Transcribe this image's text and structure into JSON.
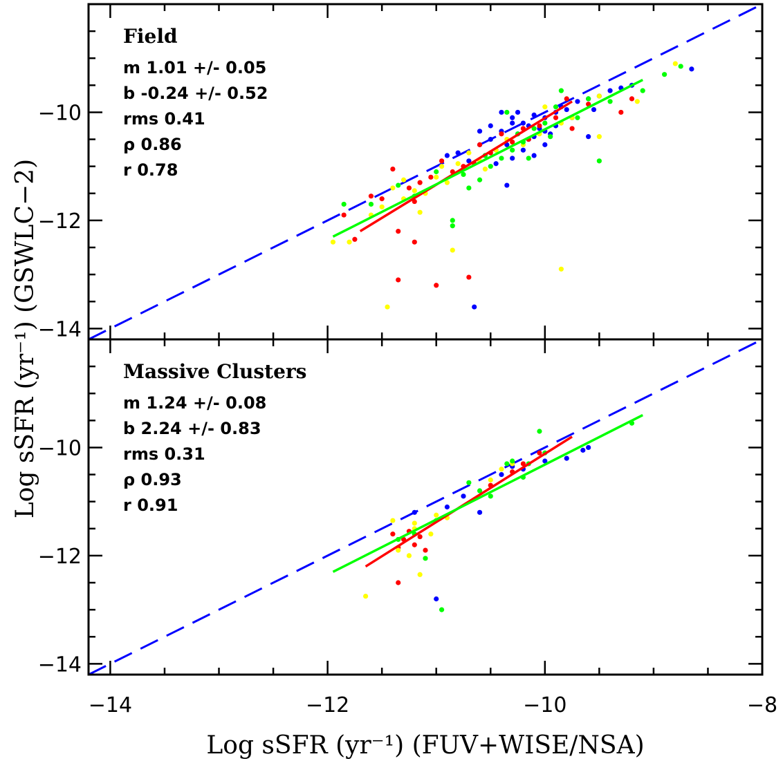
{
  "chart_data": {
    "type": "scatter",
    "xlabel": "Log sSFR (yr⁻¹) (FUV+WISE/NSA)",
    "ylabel": "Log sSFR (yr⁻¹) (GSWLC−2)",
    "xlim": [
      -14.2,
      -8
    ],
    "x_ticks": [
      -14,
      -12,
      -10,
      -8
    ],
    "y_ticks": [
      -14,
      -12,
      -10
    ],
    "colors": {
      "blue": "#0000ff",
      "red": "#ff0000",
      "yellow": "#ffff00",
      "green": "#00ff00",
      "one_to_one": "#0000ff"
    },
    "panels": [
      {
        "name": "Field",
        "ylim": [
          -14.2,
          -8
        ],
        "stats": [
          "m 1.01 +/- 0.05",
          "b -0.24 +/- 0.52",
          "rms 0.41",
          "ρ 0.86",
          "r 0.78"
        ],
        "fit_lines": [
          {
            "color": "red",
            "x": [
              -11.7,
              -9.75
            ],
            "y": [
              -12.2,
              -9.8
            ]
          },
          {
            "color": "green",
            "x": [
              -11.95,
              -9.1
            ],
            "y": [
              -12.3,
              -9.4
            ]
          }
        ],
        "series": [
          {
            "color": "blue",
            "points": [
              [
                -10.4,
                -10.35
              ],
              [
                -10.3,
                -10.1
              ],
              [
                -10.2,
                -10.2
              ],
              [
                -10.1,
                -10.05
              ],
              [
                -10.0,
                -10.1
              ],
              [
                -9.9,
                -10.0
              ],
              [
                -9.85,
                -9.9
              ],
              [
                -9.8,
                -9.95
              ],
              [
                -10.25,
                -10.4
              ],
              [
                -10.15,
                -10.5
              ],
              [
                -10.05,
                -10.3
              ],
              [
                -10.35,
                -10.6
              ],
              [
                -10.45,
                -10.7
              ],
              [
                -10.55,
                -10.8
              ],
              [
                -10.5,
                -10.5
              ],
              [
                -10.6,
                -10.6
              ],
              [
                -10.7,
                -10.9
              ],
              [
                -10.3,
                -10.85
              ],
              [
                -10.2,
                -10.7
              ],
              [
                -10.1,
                -10.8
              ],
              [
                -10.0,
                -10.6
              ],
              [
                -9.95,
                -10.4
              ],
              [
                -9.7,
                -9.8
              ],
              [
                -9.6,
                -9.75
              ],
              [
                -9.5,
                -9.7
              ],
              [
                -9.4,
                -9.6
              ],
              [
                -9.3,
                -9.55
              ],
              [
                -9.2,
                -9.5
              ],
              [
                -8.65,
                -9.2
              ],
              [
                -10.65,
                -13.6
              ],
              [
                -10.35,
                -11.35
              ],
              [
                -9.6,
                -10.45
              ],
              [
                -10.4,
                -10.0
              ],
              [
                -10.6,
                -10.35
              ],
              [
                -10.8,
                -10.75
              ],
              [
                -10.9,
                -10.8
              ],
              [
                -10.25,
                -10.0
              ],
              [
                -10.0,
                -10.35
              ],
              [
                -9.9,
                -10.25
              ],
              [
                -10.15,
                -10.25
              ],
              [
                -9.75,
                -10.1
              ],
              [
                -9.55,
                -9.95
              ],
              [
                -10.5,
                -10.25
              ],
              [
                -10.45,
                -10.95
              ],
              [
                -10.3,
                -10.2
              ],
              [
                -10.1,
                -10.45
              ]
            ]
          },
          {
            "color": "red",
            "points": [
              [
                -11.85,
                -11.9
              ],
              [
                -11.75,
                -12.35
              ],
              [
                -11.6,
                -11.55
              ],
              [
                -11.4,
                -11.05
              ],
              [
                -11.35,
                -12.2
              ],
              [
                -11.25,
                -11.4
              ],
              [
                -11.2,
                -11.65
              ],
              [
                -11.15,
                -11.3
              ],
              [
                -11.05,
                -11.2
              ],
              [
                -10.95,
                -10.9
              ],
              [
                -10.85,
                -11.1
              ],
              [
                -10.75,
                -11.0
              ],
              [
                -10.65,
                -10.95
              ],
              [
                -10.5,
                -10.75
              ],
              [
                -10.3,
                -10.55
              ],
              [
                -10.2,
                -10.3
              ],
              [
                -10.05,
                -10.25
              ],
              [
                -9.9,
                -10.1
              ],
              [
                -9.8,
                -9.75
              ],
              [
                -9.6,
                -9.85
              ],
              [
                -9.3,
                -10.0
              ],
              [
                -9.2,
                -9.75
              ],
              [
                -11.35,
                -13.1
              ],
              [
                -11.0,
                -13.2
              ],
              [
                -10.7,
                -13.05
              ],
              [
                -11.2,
                -12.4
              ],
              [
                -11.5,
                -11.6
              ],
              [
                -10.6,
                -10.6
              ],
              [
                -10.4,
                -10.4
              ],
              [
                -10.15,
                -10.5
              ],
              [
                -9.75,
                -10.3
              ]
            ]
          },
          {
            "color": "yellow",
            "points": [
              [
                -11.95,
                -12.4
              ],
              [
                -11.8,
                -12.4
              ],
              [
                -11.5,
                -11.75
              ],
              [
                -11.4,
                -11.4
              ],
              [
                -11.3,
                -11.6
              ],
              [
                -11.2,
                -11.45
              ],
              [
                -11.1,
                -11.5
              ],
              [
                -11.0,
                -11.2
              ],
              [
                -10.9,
                -11.3
              ],
              [
                -10.85,
                -12.55
              ],
              [
                -10.8,
                -10.95
              ],
              [
                -11.45,
                -13.6
              ],
              [
                -11.15,
                -11.85
              ],
              [
                -10.6,
                -10.9
              ],
              [
                -10.45,
                -10.7
              ],
              [
                -10.35,
                -10.5
              ],
              [
                -10.2,
                -10.6
              ],
              [
                -10.05,
                -10.4
              ],
              [
                -9.85,
                -10.2
              ],
              [
                -9.75,
                -10.1
              ],
              [
                -9.5,
                -9.7
              ],
              [
                -9.15,
                -9.8
              ],
              [
                -8.8,
                -9.1
              ],
              [
                -9.85,
                -12.9
              ],
              [
                -9.5,
                -10.45
              ],
              [
                -11.6,
                -11.9
              ],
              [
                -11.3,
                -11.25
              ],
              [
                -10.95,
                -11.0
              ],
              [
                -10.7,
                -10.75
              ],
              [
                -10.55,
                -11.05
              ],
              [
                -10.0,
                -9.9
              ]
            ]
          },
          {
            "color": "green",
            "points": [
              [
                -11.85,
                -11.7
              ],
              [
                -11.6,
                -11.7
              ],
              [
                -11.35,
                -11.35
              ],
              [
                -11.2,
                -11.55
              ],
              [
                -11.0,
                -11.1
              ],
              [
                -10.85,
                -12.0
              ],
              [
                -10.85,
                -12.1
              ],
              [
                -10.7,
                -11.4
              ],
              [
                -10.6,
                -11.25
              ],
              [
                -10.5,
                -11.0
              ],
              [
                -10.4,
                -10.85
              ],
              [
                -10.3,
                -10.7
              ],
              [
                -10.2,
                -10.55
              ],
              [
                -10.1,
                -10.3
              ],
              [
                -10.0,
                -10.2
              ],
              [
                -9.9,
                -9.9
              ],
              [
                -9.85,
                -9.6
              ],
              [
                -9.6,
                -9.75
              ],
              [
                -9.5,
                -10.9
              ],
              [
                -9.4,
                -9.8
              ],
              [
                -9.1,
                -9.6
              ],
              [
                -8.9,
                -9.3
              ],
              [
                -8.75,
                -9.15
              ],
              [
                -10.35,
                -10.0
              ],
              [
                -10.15,
                -10.85
              ],
              [
                -9.95,
                -10.45
              ],
              [
                -10.55,
                -10.8
              ],
              [
                -10.75,
                -11.15
              ],
              [
                -9.7,
                -10.1
              ],
              [
                -10.25,
                -10.4
              ]
            ]
          }
        ]
      },
      {
        "name": "Massive Clusters",
        "ylim": [
          -14.2,
          -8
        ],
        "stats": [
          "m 1.24 +/- 0.08",
          "b 2.24 +/- 0.83",
          "rms 0.31",
          "ρ 0.93",
          "r 0.91"
        ],
        "fit_lines": [
          {
            "color": "red",
            "x": [
              -11.65,
              -9.75
            ],
            "y": [
              -12.2,
              -9.8
            ]
          },
          {
            "color": "green",
            "x": [
              -11.95,
              -9.1
            ],
            "y": [
              -12.3,
              -9.4
            ]
          }
        ],
        "series": [
          {
            "color": "blue",
            "points": [
              [
                -11.2,
                -11.2
              ],
              [
                -10.9,
                -11.1
              ],
              [
                -10.6,
                -11.2
              ],
              [
                -10.4,
                -10.5
              ],
              [
                -10.2,
                -10.4
              ],
              [
                -10.0,
                -10.25
              ],
              [
                -9.8,
                -10.2
              ],
              [
                -9.65,
                -10.05
              ],
              [
                -9.6,
                -10.0
              ],
              [
                -11.0,
                -12.8
              ],
              [
                -10.3,
                -10.35
              ],
              [
                -10.75,
                -10.9
              ]
            ]
          },
          {
            "color": "red",
            "points": [
              [
                -11.4,
                -11.6
              ],
              [
                -11.35,
                -11.85
              ],
              [
                -11.3,
                -11.7
              ],
              [
                -11.25,
                -11.55
              ],
              [
                -11.2,
                -11.8
              ],
              [
                -11.1,
                -11.9
              ],
              [
                -11.35,
                -12.5
              ],
              [
                -10.5,
                -10.7
              ],
              [
                -10.3,
                -10.45
              ],
              [
                -10.2,
                -10.3
              ],
              [
                -10.05,
                -10.1
              ],
              [
                -11.15,
                -11.65
              ]
            ]
          },
          {
            "color": "yellow",
            "points": [
              [
                -11.65,
                -12.75
              ],
              [
                -11.4,
                -11.35
              ],
              [
                -11.35,
                -11.9
              ],
              [
                -11.25,
                -12.0
              ],
              [
                -11.2,
                -11.5
              ],
              [
                -11.15,
                -12.35
              ],
              [
                -11.05,
                -11.6
              ],
              [
                -11.0,
                -11.25
              ],
              [
                -10.9,
                -11.3
              ],
              [
                -10.5,
                -10.6
              ],
              [
                -10.4,
                -10.4
              ],
              [
                -10.3,
                -10.3
              ],
              [
                -11.2,
                -11.4
              ]
            ]
          },
          {
            "color": "green",
            "points": [
              [
                -11.35,
                -11.7
              ],
              [
                -11.2,
                -11.6
              ],
              [
                -11.1,
                -12.05
              ],
              [
                -10.95,
                -13.0
              ],
              [
                -10.7,
                -10.65
              ],
              [
                -10.6,
                -10.8
              ],
              [
                -10.5,
                -10.9
              ],
              [
                -10.35,
                -10.3
              ],
              [
                -10.3,
                -10.25
              ],
              [
                -10.15,
                -10.3
              ],
              [
                -10.0,
                -10.1
              ],
              [
                -10.05,
                -9.7
              ],
              [
                -9.2,
                -9.55
              ],
              [
                -11.0,
                -11.35
              ],
              [
                -10.2,
                -10.55
              ]
            ]
          }
        ]
      }
    ]
  }
}
